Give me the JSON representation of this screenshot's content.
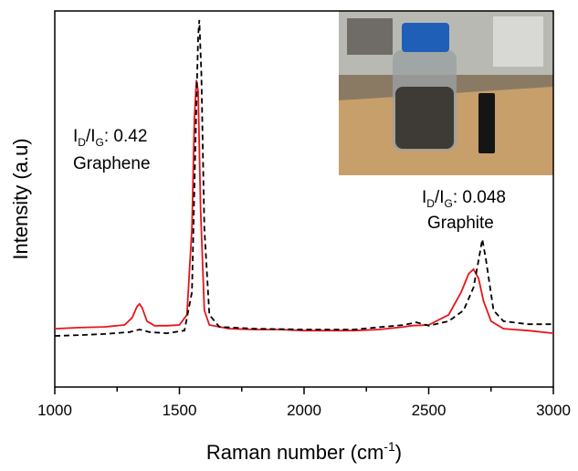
{
  "chart_data": {
    "type": "line",
    "x_label": [
      "Raman number (cm",
      "-1",
      ")"
    ],
    "y_label": "Intensity (a.u)",
    "xlim": [
      1000,
      3000
    ],
    "ylim": [
      0,
      100
    ],
    "xticks": [
      1000,
      1500,
      2000,
      2500,
      3000
    ],
    "xminorticks": [
      1250,
      1750,
      2250,
      2750
    ],
    "series": [
      {
        "color": "#e8141b",
        "dash": false,
        "x": [
          1000,
          1100,
          1200,
          1280,
          1310,
          1330,
          1340,
          1350,
          1370,
          1400,
          1450,
          1500,
          1530,
          1550,
          1560,
          1568,
          1575,
          1585,
          1600,
          1620,
          1700,
          1800,
          1900,
          2000,
          2100,
          2200,
          2300,
          2400,
          2430,
          2500,
          2580,
          2630,
          2660,
          2680,
          2700,
          2720,
          2750,
          2800,
          2900,
          3000
        ],
        "values": [
          15.5,
          15.8,
          16.0,
          16.5,
          18.4,
          21.4,
          22.1,
          21.1,
          17.5,
          16.3,
          16.3,
          16.5,
          19.2,
          42.2,
          71.4,
          81.6,
          78.6,
          47.1,
          20.4,
          16.5,
          15.5,
          15.3,
          15.3,
          15.0,
          15.0,
          15.0,
          15.3,
          16.0,
          16.3,
          16.5,
          19.2,
          25.2,
          30.1,
          31.3,
          28.9,
          22.8,
          17.5,
          15.5,
          15.0,
          14.3
        ]
      },
      {
        "color": "#000000",
        "dash": true,
        "x": [
          1000,
          1100,
          1200,
          1300,
          1340,
          1380,
          1450,
          1520,
          1550,
          1565,
          1575,
          1580,
          1588,
          1600,
          1620,
          1660,
          1800,
          2000,
          2200,
          2400,
          2450,
          2500,
          2580,
          2640,
          2680,
          2700,
          2715,
          2730,
          2760,
          2800,
          2900,
          3000
        ],
        "values": [
          13.6,
          13.8,
          14.1,
          14.6,
          15.3,
          14.6,
          14.3,
          15.0,
          25.2,
          66.5,
          93.2,
          97.6,
          83.5,
          42.2,
          19.2,
          16.0,
          15.5,
          15.3,
          15.3,
          16.5,
          17.2,
          16.3,
          17.5,
          20.4,
          26.5,
          33.7,
          39.3,
          33.7,
          20.4,
          17.5,
          16.7,
          16.7
        ]
      }
    ],
    "annotations": [
      {
        "ratio": [
          "I",
          "D",
          "/I",
          "G",
          ": 0.42"
        ],
        "label": "Graphene"
      },
      {
        "ratio": [
          "I",
          "D",
          "/I",
          "G",
          ": 0.048"
        ],
        "label": "Graphite"
      }
    ]
  }
}
